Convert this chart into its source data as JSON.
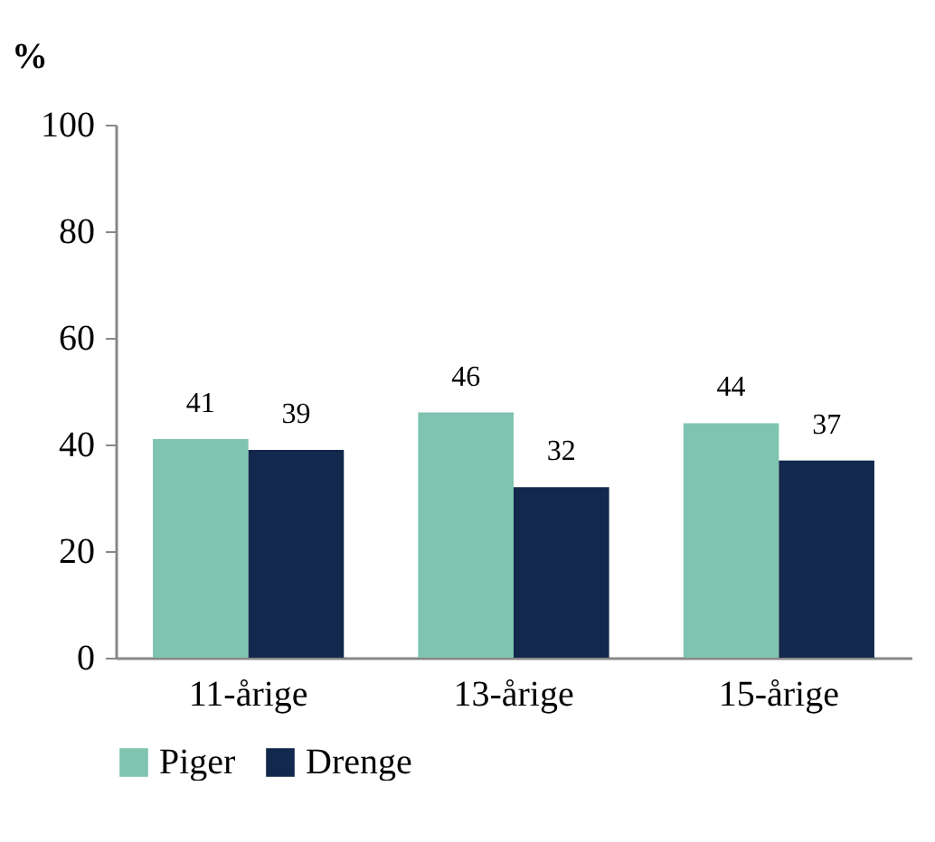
{
  "chart_data": {
    "type": "bar",
    "ylabel": "%",
    "categories": [
      "11-årige",
      "13-årige",
      "15-årige"
    ],
    "series": [
      {
        "name": "Piger",
        "color": "#7fc4b0",
        "values": [
          41,
          46,
          44
        ]
      },
      {
        "name": "Drenge",
        "color": "#12284c",
        "values": [
          39,
          32,
          37
        ]
      }
    ],
    "ylim": [
      0,
      100
    ],
    "yticks": [
      0,
      20,
      40,
      60,
      80,
      100
    ],
    "data_labels": true,
    "legend": "bottom",
    "grid": false
  }
}
